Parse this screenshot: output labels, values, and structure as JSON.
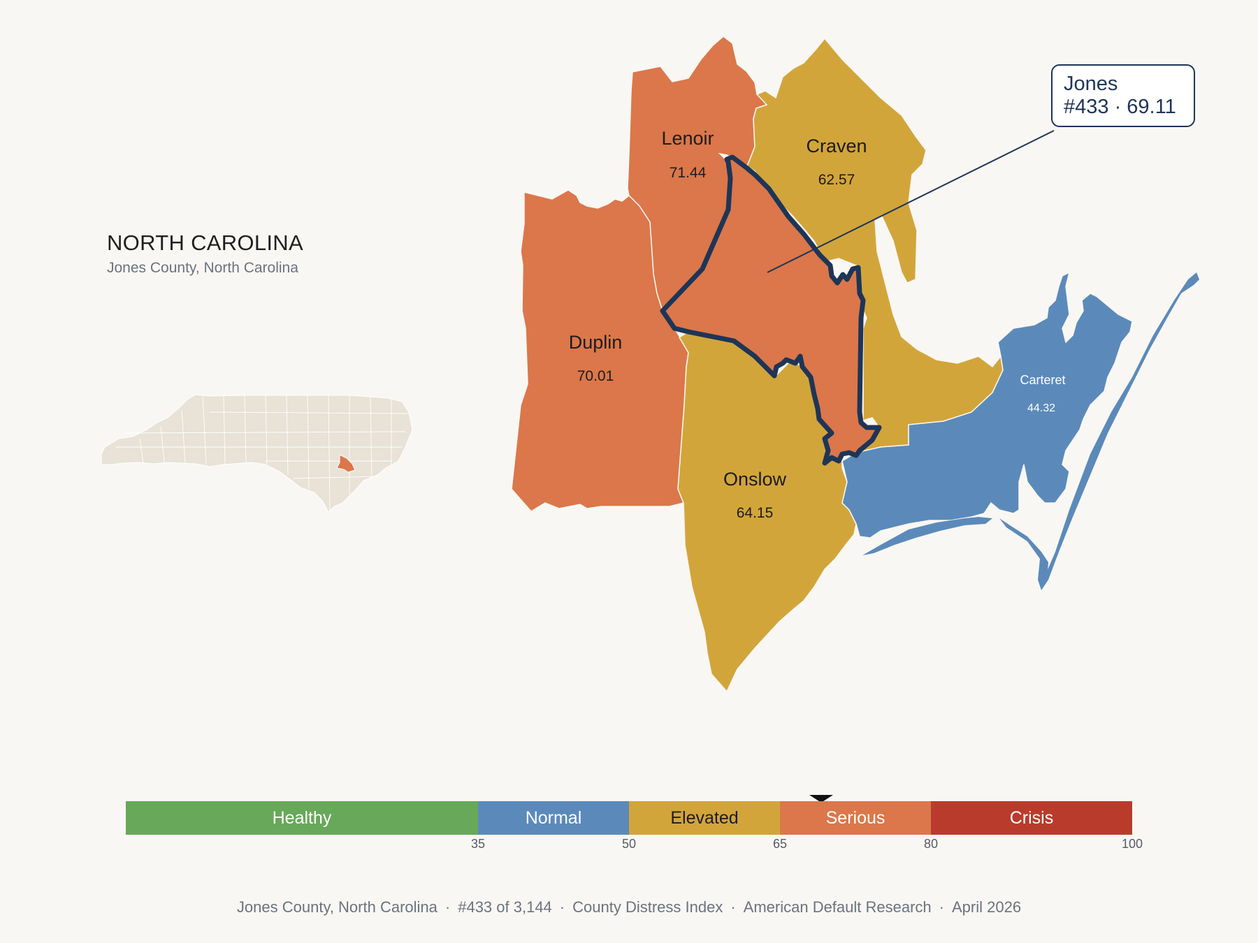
{
  "state": {
    "title": "NORTH CAROLINA",
    "subtitle": "Jones County, North Carolina"
  },
  "colors": {
    "background": "#f9f7f3",
    "healthy": "#67a85a",
    "normal": "#5b8aba",
    "elevated": "#d2a53b",
    "serious": "#db774a",
    "crisis": "#b93b2c",
    "highlight_outline": "#1e3557",
    "inset_state": "#e8e2d7"
  },
  "counties": [
    {
      "id": "lenoir",
      "name": "Lenoir",
      "value": "71.44",
      "category": "serious"
    },
    {
      "id": "craven",
      "name": "Craven",
      "value": "62.57",
      "category": "elevated"
    },
    {
      "id": "duplin",
      "name": "Duplin",
      "value": "70.01",
      "category": "serious"
    },
    {
      "id": "onslow",
      "name": "Onslow",
      "value": "64.15",
      "category": "elevated"
    },
    {
      "id": "carteret",
      "name": "Carteret",
      "value": "44.32",
      "category": "normal"
    },
    {
      "id": "jones",
      "name": "Jones",
      "value": "69.11",
      "category": "serious",
      "highlighted": true
    }
  ],
  "callout": {
    "name": "Jones",
    "detail": "#433 · 69.11"
  },
  "legend": {
    "segments": [
      {
        "label": "Healthy",
        "min": 0,
        "max": 35,
        "color": "#67a85a"
      },
      {
        "label": "Normal",
        "min": 35,
        "max": 50,
        "color": "#5b8aba"
      },
      {
        "label": "Elevated",
        "min": 50,
        "max": 65,
        "color": "#d2a53b"
      },
      {
        "label": "Serious",
        "min": 65,
        "max": 80,
        "color": "#db774a"
      },
      {
        "label": "Crisis",
        "min": 80,
        "max": 100,
        "color": "#b93b2c"
      }
    ],
    "ticks": [
      "35",
      "50",
      "65",
      "80",
      "100"
    ],
    "marker_value": 69.11
  },
  "footer": {
    "county": "Jones County, North Carolina",
    "rank": "#433 of 3,144",
    "index": "County Distress Index",
    "source": "American Default Research",
    "date": "April 2026"
  }
}
